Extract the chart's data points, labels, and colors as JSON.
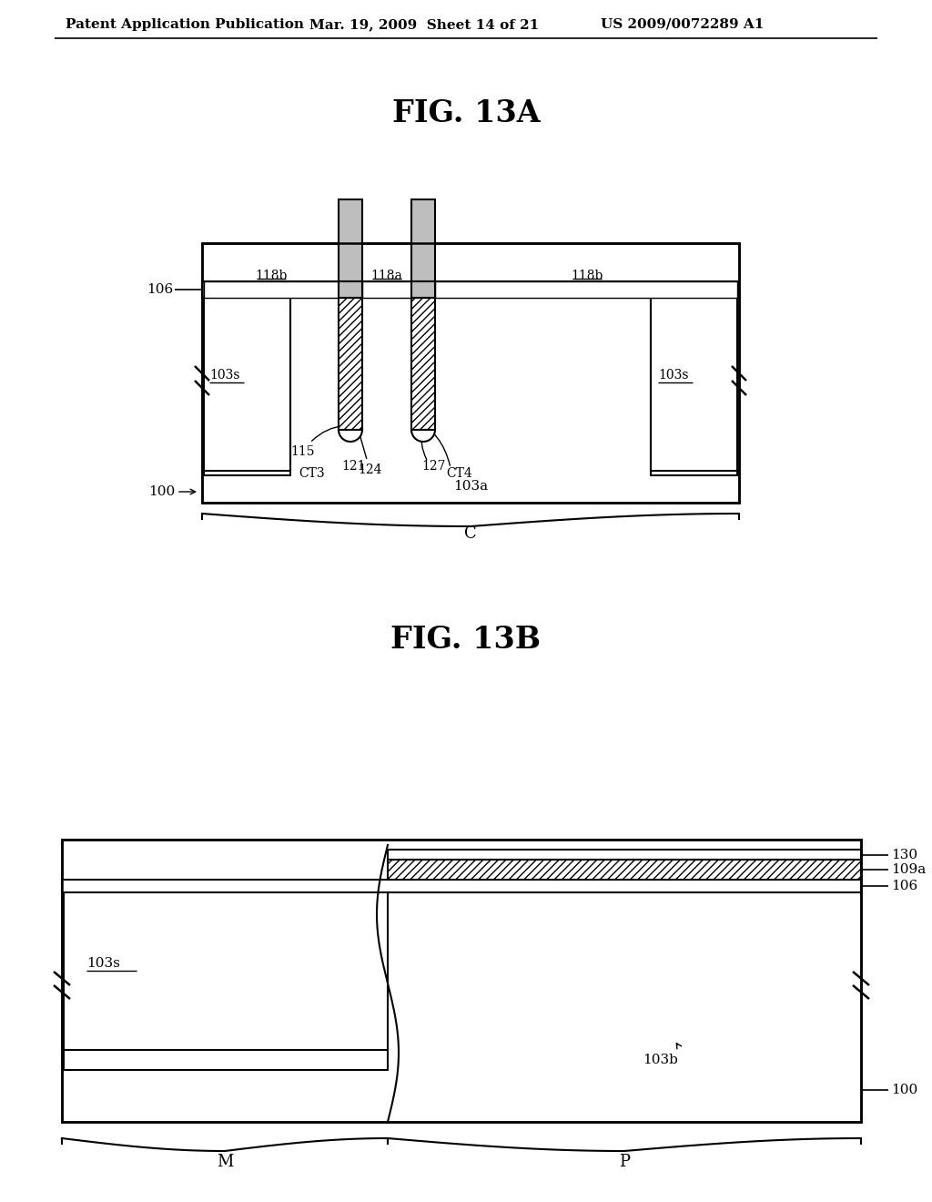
{
  "header_left": "Patent Application Publication",
  "header_mid": "Mar. 19, 2009  Sheet 14 of 21",
  "header_right": "US 2009/0072289 A1",
  "fig13a_title": "FIG. 13A",
  "fig13b_title": "FIG. 13B",
  "bg_color": "#ffffff"
}
